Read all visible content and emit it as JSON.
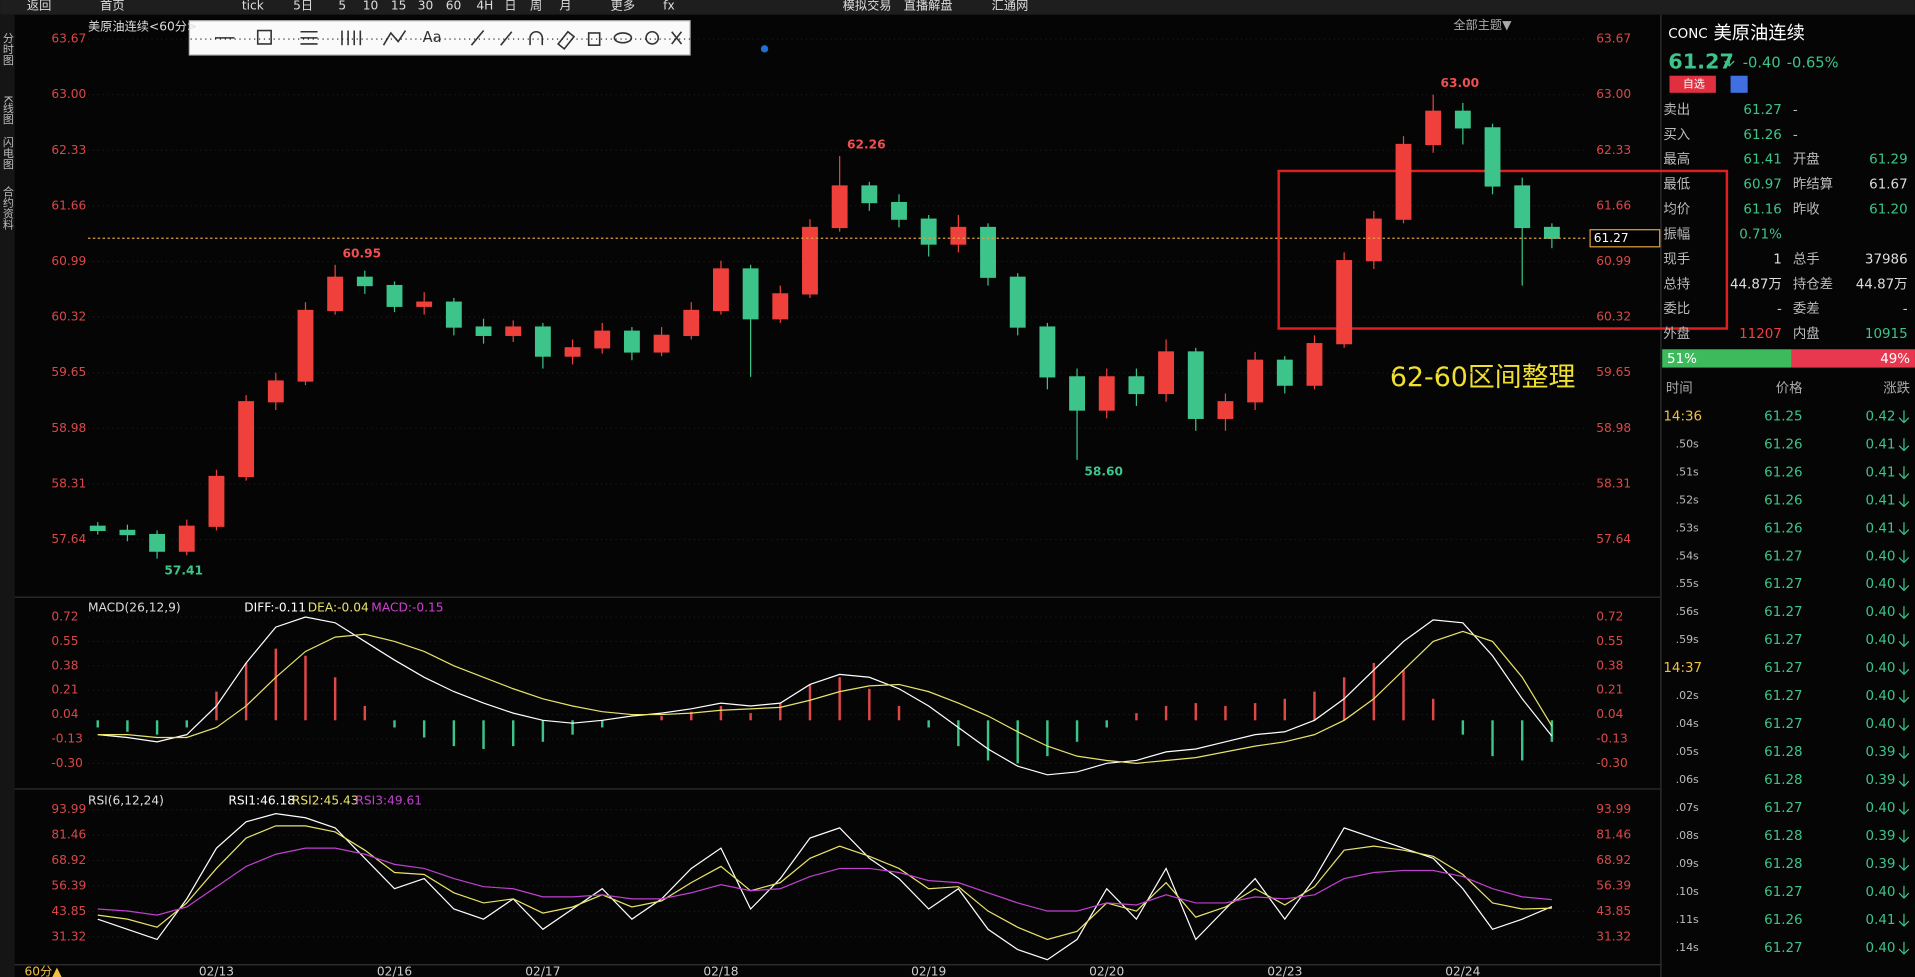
{
  "toolbar": {
    "items": [
      "返回",
      "首页",
      "tick",
      "5日",
      "5",
      "10",
      "15",
      "30",
      "60",
      "4H",
      "日",
      "周",
      "月",
      "更多",
      "fx",
      "模拟交易",
      "直播解盘",
      "汇通网"
    ]
  },
  "sidebar": {
    "tabs": [
      "分时图",
      "K线图",
      "闪电图",
      "合约资料"
    ]
  },
  "drawing_tools": {
    "font_button": "Aa"
  },
  "chart_data": [
    {
      "type": "candlestick",
      "title": "美原油连续<60分>",
      "theme_button": "全部主题▼",
      "period": "60分▲",
      "up_color": "#f0403c",
      "down_color": "#3cc48a",
      "categories": [
        null,
        null,
        null,
        null,
        "02/13",
        null,
        null,
        null,
        null,
        null,
        "02/16",
        null,
        null,
        null,
        null,
        "02/17",
        null,
        null,
        null,
        null,
        null,
        "02/18",
        null,
        null,
        null,
        null,
        null,
        null,
        "02/19",
        null,
        null,
        null,
        null,
        null,
        "02/20",
        null,
        null,
        null,
        null,
        null,
        "02/23",
        null,
        null,
        null,
        null,
        null,
        "02/24",
        null,
        null,
        null
      ],
      "candles": {
        "open": [
          57.8,
          57.75,
          57.7,
          57.5,
          57.8,
          58.4,
          59.3,
          59.55,
          60.4,
          60.8,
          60.7,
          60.45,
          60.5,
          60.2,
          60.1,
          60.2,
          59.85,
          59.95,
          60.15,
          59.9,
          60.1,
          60.4,
          60.9,
          60.3,
          60.6,
          61.4,
          61.9,
          61.7,
          61.5,
          61.2,
          61.4,
          60.8,
          60.2,
          59.6,
          59.2,
          59.6,
          59.4,
          59.9,
          59.1,
          59.3,
          59.8,
          59.5,
          60.0,
          61.0,
          61.5,
          62.4,
          62.8,
          62.6,
          61.9,
          61.4
        ],
        "high": [
          57.85,
          57.82,
          57.75,
          57.88,
          58.48,
          59.38,
          59.65,
          60.5,
          60.95,
          60.88,
          60.75,
          60.62,
          60.55,
          60.3,
          60.28,
          60.25,
          60.05,
          60.25,
          60.2,
          60.2,
          60.5,
          61.0,
          60.95,
          60.7,
          61.5,
          62.26,
          61.95,
          61.8,
          61.55,
          61.55,
          61.45,
          60.85,
          60.25,
          59.7,
          59.7,
          59.7,
          60.05,
          59.95,
          59.4,
          59.9,
          59.85,
          60.1,
          61.1,
          61.6,
          62.5,
          63.0,
          62.9,
          62.65,
          62.0,
          61.45
        ],
        "low": [
          57.7,
          57.62,
          57.41,
          57.45,
          57.75,
          58.35,
          59.2,
          59.5,
          60.35,
          60.6,
          60.38,
          60.35,
          60.1,
          60.0,
          60.02,
          59.7,
          59.75,
          59.88,
          59.8,
          59.85,
          60.05,
          60.35,
          59.6,
          60.25,
          60.55,
          61.35,
          61.6,
          61.4,
          61.05,
          61.1,
          60.7,
          60.1,
          59.45,
          58.6,
          59.1,
          59.25,
          59.3,
          58.95,
          58.95,
          59.2,
          59.4,
          59.45,
          59.95,
          60.9,
          61.45,
          62.3,
          62.4,
          61.8,
          60.7,
          61.15
        ],
        "close": [
          57.75,
          57.7,
          57.5,
          57.8,
          58.4,
          59.3,
          59.55,
          60.4,
          60.8,
          60.7,
          60.45,
          60.5,
          60.2,
          60.1,
          60.2,
          59.85,
          59.95,
          60.15,
          59.9,
          60.1,
          60.4,
          60.9,
          60.3,
          60.6,
          61.4,
          61.9,
          61.7,
          61.5,
          61.2,
          61.4,
          60.8,
          60.2,
          59.6,
          59.2,
          59.6,
          59.4,
          59.9,
          59.1,
          59.3,
          59.8,
          59.5,
          60.0,
          61.0,
          61.5,
          62.4,
          62.8,
          62.6,
          61.9,
          61.4,
          61.27
        ]
      },
      "annotations": [
        "63.00",
        "62.26",
        "60.95",
        "58.60",
        "57.41"
      ],
      "last_price": 61.27,
      "note": "62-60区间整理",
      "ylim": [
        56.96,
        63.92
      ],
      "yticks": [
        63.67,
        {
          "value": 63,
          "label": "63.00"
        },
        62.33,
        61.66,
        60.99,
        60.32,
        59.65,
        58.98,
        58.31,
        57.64
      ]
    },
    {
      "type": "macd",
      "title": "MACD(26,12,9)",
      "legend": [
        "DIFF:-0.11",
        "DEA:-0.04",
        "MACD:-0.15"
      ],
      "histogram": [
        -0.05,
        -0.08,
        -0.1,
        -0.05,
        0.2,
        0.4,
        0.5,
        0.45,
        0.3,
        0.1,
        -0.05,
        -0.12,
        -0.18,
        -0.2,
        -0.18,
        -0.15,
        -0.1,
        -0.05,
        0.0,
        0.03,
        0.06,
        0.1,
        0.05,
        0.12,
        0.25,
        0.3,
        0.22,
        0.1,
        -0.05,
        -0.18,
        -0.28,
        -0.3,
        -0.25,
        -0.15,
        -0.05,
        0.05,
        0.1,
        0.12,
        0.1,
        0.12,
        0.15,
        0.2,
        0.3,
        0.4,
        0.35,
        0.15,
        -0.1,
        -0.25,
        -0.28,
        -0.15
      ],
      "series": [
        {
          "color": "#ffffff",
          "values": [
            -0.1,
            -0.12,
            -0.15,
            -0.1,
            0.1,
            0.4,
            0.65,
            0.72,
            0.68,
            0.55,
            0.42,
            0.3,
            0.2,
            0.12,
            0.05,
            0.0,
            -0.02,
            0.0,
            0.03,
            0.05,
            0.08,
            0.12,
            0.1,
            0.12,
            0.25,
            0.32,
            0.3,
            0.22,
            0.1,
            -0.05,
            -0.2,
            -0.32,
            -0.38,
            -0.36,
            -0.3,
            -0.28,
            -0.22,
            -0.2,
            -0.15,
            -0.1,
            -0.08,
            0.0,
            0.15,
            0.35,
            0.55,
            0.7,
            0.68,
            0.45,
            0.15,
            -0.11
          ]
        },
        {
          "color": "#e8e26a",
          "values": [
            -0.1,
            -0.1,
            -0.12,
            -0.12,
            -0.05,
            0.1,
            0.3,
            0.48,
            0.58,
            0.6,
            0.55,
            0.48,
            0.38,
            0.3,
            0.22,
            0.15,
            0.1,
            0.06,
            0.04,
            0.04,
            0.05,
            0.07,
            0.08,
            0.09,
            0.14,
            0.2,
            0.24,
            0.25,
            0.2,
            0.12,
            0.03,
            -0.08,
            -0.18,
            -0.25,
            -0.28,
            -0.3,
            -0.28,
            -0.26,
            -0.22,
            -0.18,
            -0.15,
            -0.1,
            0.0,
            0.15,
            0.35,
            0.55,
            0.62,
            0.55,
            0.3,
            -0.04
          ]
        }
      ],
      "legend_colors": [
        "#ffffff",
        "#e8e26a",
        "#d040d0"
      ],
      "ylim": [
        -0.47,
        0.85
      ],
      "yticks": [
        0.72,
        0.55,
        0.38,
        0.21,
        0.04,
        -0.13,
        {
          "value": -0.3,
          "label": "-0.30"
        }
      ]
    },
    {
      "type": "line",
      "title": "RSI(6,12,24)",
      "legend": [
        "RSI1:46.18",
        "RSI2:45.43",
        "RSI3:49.61"
      ],
      "series": [
        {
          "color": "#ffffff",
          "values": [
            40,
            35,
            30,
            50,
            75,
            88,
            92,
            90,
            85,
            70,
            55,
            60,
            45,
            40,
            50,
            35,
            45,
            55,
            40,
            50,
            65,
            75,
            45,
            60,
            80,
            85,
            70,
            60,
            45,
            55,
            35,
            25,
            20,
            30,
            55,
            40,
            65,
            30,
            45,
            60,
            40,
            60,
            85,
            80,
            75,
            70,
            55,
            35,
            40,
            46.18
          ]
        },
        {
          "color": "#e8e26a",
          "values": [
            42,
            40,
            36,
            48,
            65,
            80,
            86,
            86,
            83,
            74,
            63,
            62,
            53,
            48,
            50,
            43,
            46,
            52,
            46,
            49,
            58,
            66,
            54,
            58,
            70,
            76,
            71,
            65,
            55,
            56,
            44,
            36,
            30,
            34,
            48,
            44,
            58,
            41,
            46,
            55,
            47,
            56,
            74,
            76,
            74,
            71,
            62,
            48,
            45,
            45.43
          ]
        },
        {
          "color": "#c040d0",
          "values": [
            45,
            44,
            42,
            46,
            56,
            66,
            72,
            75,
            75,
            72,
            67,
            65,
            60,
            56,
            55,
            51,
            51,
            52,
            50,
            50,
            53,
            57,
            54,
            55,
            61,
            65,
            65,
            63,
            59,
            58,
            53,
            48,
            44,
            44,
            48,
            47,
            52,
            48,
            48,
            51,
            50,
            52,
            60,
            63,
            64,
            64,
            61,
            55,
            51,
            49.61
          ]
        }
      ],
      "ylim": [
        17.5,
        103
      ],
      "yticks": [
        93.99,
        81.46,
        68.92,
        56.39,
        43.85,
        31.32
      ]
    }
  ],
  "quote": {
    "code": "CONC",
    "name": "美原油连续",
    "price": "61.27",
    "change": "-0.40",
    "percent": "-0.65%",
    "favorite": "自选",
    "rows": [
      [
        "卖出",
        "61.27",
        "-",
        ""
      ],
      [
        "买入",
        "61.26",
        "-",
        ""
      ],
      [
        "最高",
        "61.41",
        "开盘",
        "61.29"
      ],
      [
        "最低",
        "60.97",
        "昨结算",
        "61.67"
      ],
      [
        "均价",
        "61.16",
        "昨收",
        "61.20"
      ],
      [
        "振幅",
        "0.71%",
        "",
        ""
      ],
      [
        "现手",
        "1",
        "总手",
        "37986"
      ],
      [
        "总持",
        "44.87万",
        "持仓差",
        "44.87万"
      ],
      [
        "委比",
        "-",
        "委差",
        "-"
      ],
      [
        "外盘",
        "11207",
        "内盘",
        "10915"
      ]
    ],
    "buy_ratio": "51%",
    "sell_ratio": "49%"
  },
  "ticks": {
    "header": [
      "时间",
      "价格",
      "涨跌"
    ],
    "rows": [
      [
        "14:36",
        "61.25",
        "0.42"
      ],
      [
        ".50s",
        "61.26",
        "0.41"
      ],
      [
        ".51s",
        "61.26",
        "0.41"
      ],
      [
        ".52s",
        "61.26",
        "0.41"
      ],
      [
        ".53s",
        "61.26",
        "0.41"
      ],
      [
        ".54s",
        "61.27",
        "0.40"
      ],
      [
        ".55s",
        "61.27",
        "0.40"
      ],
      [
        ".56s",
        "61.27",
        "0.40"
      ],
      [
        ".59s",
        "61.27",
        "0.40"
      ],
      [
        "14:37",
        "61.27",
        "0.40"
      ],
      [
        ".02s",
        "61.27",
        "0.40"
      ],
      [
        ".04s",
        "61.27",
        "0.40"
      ],
      [
        ".05s",
        "61.28",
        "0.39"
      ],
      [
        ".06s",
        "61.28",
        "0.39"
      ],
      [
        ".07s",
        "61.27",
        "0.40"
      ],
      [
        ".08s",
        "61.28",
        "0.39"
      ],
      [
        ".09s",
        "61.28",
        "0.39"
      ],
      [
        ".10s",
        "61.27",
        "0.40"
      ],
      [
        ".11s",
        "61.26",
        "0.41"
      ],
      [
        ".14s",
        "61.27",
        "0.40"
      ]
    ]
  }
}
